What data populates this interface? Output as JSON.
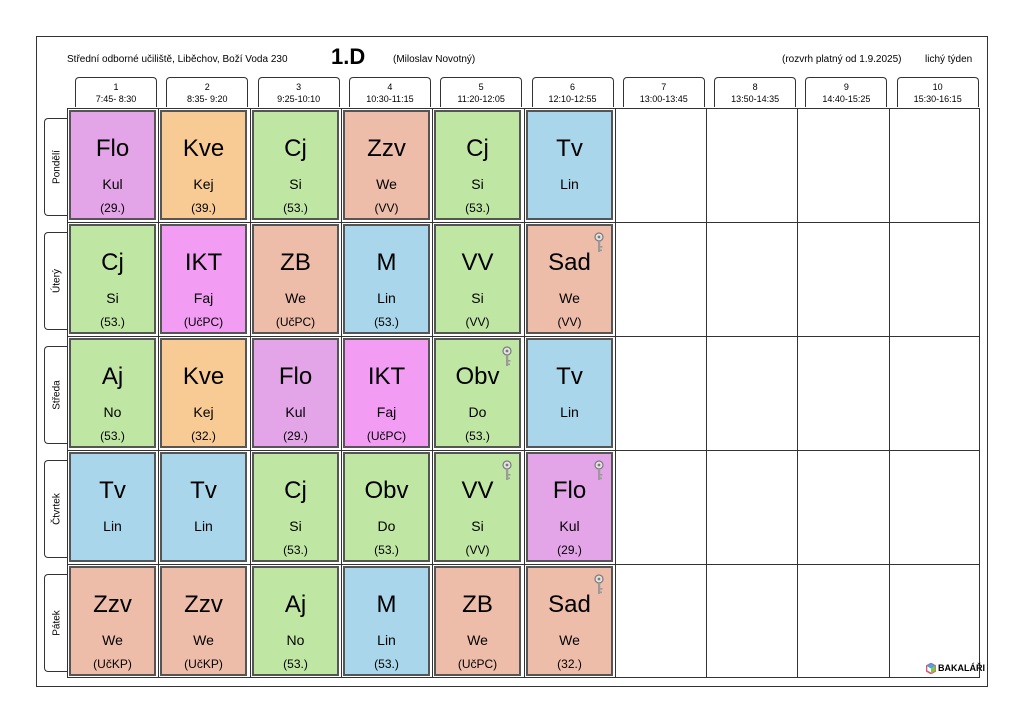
{
  "header": {
    "school": "Střední odborné učiliště, Liběchov, Boží Voda 230",
    "class_name": "1.D",
    "class_teacher": "(Miloslav Novotný)",
    "validity": "(rozvrh platný od 1.9.2025)",
    "week_type": "lichý týden"
  },
  "periods": [
    {
      "num": "1",
      "time": "7:45- 8:30"
    },
    {
      "num": "2",
      "time": "8:35- 9:20"
    },
    {
      "num": "3",
      "time": "9:25-10:10"
    },
    {
      "num": "4",
      "time": "10:30-11:15"
    },
    {
      "num": "5",
      "time": "11:20-12:05"
    },
    {
      "num": "6",
      "time": "12:10-12:55"
    },
    {
      "num": "7",
      "time": "13:00-13:45"
    },
    {
      "num": "8",
      "time": "13:50-14:35"
    },
    {
      "num": "9",
      "time": "14:40-15:25"
    },
    {
      "num": "10",
      "time": "15:30-16:15"
    }
  ],
  "colors": {
    "green": "#bfe6a3",
    "blue": "#a9d6ea",
    "salmon": "#eebda9",
    "pink": "#f29cf4",
    "lilac": "#e3a5e8",
    "orange": "#f8cb95"
  },
  "days": [
    {
      "name": "Pondělí",
      "lessons": [
        {
          "subject": "Flo",
          "teacher": "Kul",
          "room": "(29.)",
          "color": "lilac"
        },
        {
          "subject": "Kve",
          "teacher": "Kej",
          "room": "(39.)",
          "color": "orange"
        },
        {
          "subject": "Cj",
          "teacher": "Si",
          "room": "(53.)",
          "color": "green"
        },
        {
          "subject": "Zzv",
          "teacher": "We",
          "room": "(VV)",
          "color": "salmon"
        },
        {
          "subject": "Cj",
          "teacher": "Si",
          "room": "(53.)",
          "color": "green"
        },
        {
          "subject": "Tv",
          "teacher": "Lin",
          "room": "",
          "color": "blue"
        }
      ]
    },
    {
      "name": "Úterý",
      "lessons": [
        {
          "subject": "Cj",
          "teacher": "Si",
          "room": "(53.)",
          "color": "green"
        },
        {
          "subject": "IKT",
          "teacher": "Faj",
          "room": "(UčPC)",
          "color": "pink"
        },
        {
          "subject": "ZB",
          "teacher": "We",
          "room": "(UčPC)",
          "color": "salmon"
        },
        {
          "subject": "M",
          "teacher": "Lin",
          "room": "(53.)",
          "color": "blue"
        },
        {
          "subject": "VV",
          "teacher": "Si",
          "room": "(VV)",
          "color": "green"
        },
        {
          "subject": "Sad",
          "teacher": "We",
          "room": "(VV)",
          "color": "salmon",
          "key": true
        }
      ]
    },
    {
      "name": "Středa",
      "lessons": [
        {
          "subject": "Aj",
          "teacher": "No",
          "room": "(53.)",
          "color": "green"
        },
        {
          "subject": "Kve",
          "teacher": "Kej",
          "room": "(32.)",
          "color": "orange"
        },
        {
          "subject": "Flo",
          "teacher": "Kul",
          "room": "(29.)",
          "color": "lilac"
        },
        {
          "subject": "IKT",
          "teacher": "Faj",
          "room": "(UčPC)",
          "color": "pink"
        },
        {
          "subject": "Obv",
          "teacher": "Do",
          "room": "(53.)",
          "color": "green",
          "key": true
        },
        {
          "subject": "Tv",
          "teacher": "Lin",
          "room": "",
          "color": "blue"
        }
      ]
    },
    {
      "name": "Čtvrtek",
      "lessons": [
        {
          "subject": "Tv",
          "teacher": "Lin",
          "room": "",
          "color": "blue"
        },
        {
          "subject": "Tv",
          "teacher": "Lin",
          "room": "",
          "color": "blue"
        },
        {
          "subject": "Cj",
          "teacher": "Si",
          "room": "(53.)",
          "color": "green"
        },
        {
          "subject": "Obv",
          "teacher": "Do",
          "room": "(53.)",
          "color": "green"
        },
        {
          "subject": "VV",
          "teacher": "Si",
          "room": "(VV)",
          "color": "green",
          "key": true
        },
        {
          "subject": "Flo",
          "teacher": "Kul",
          "room": "(29.)",
          "color": "lilac",
          "key": true
        }
      ]
    },
    {
      "name": "Pátek",
      "lessons": [
        {
          "subject": "Zzv",
          "teacher": "We",
          "room": "(UčKP)",
          "color": "salmon"
        },
        {
          "subject": "Zzv",
          "teacher": "We",
          "room": "(UčKP)",
          "color": "salmon"
        },
        {
          "subject": "Aj",
          "teacher": "No",
          "room": "(53.)",
          "color": "green"
        },
        {
          "subject": "M",
          "teacher": "Lin",
          "room": "(53.)",
          "color": "blue"
        },
        {
          "subject": "ZB",
          "teacher": "We",
          "room": "(UčPC)",
          "color": "salmon"
        },
        {
          "subject": "Sad",
          "teacher": "We",
          "room": "(32.)",
          "color": "salmon",
          "key": true
        }
      ]
    }
  ],
  "footer": {
    "logo_text": "BAKALÁŘI",
    "logo_icon": "hexagon-logo-icon"
  }
}
